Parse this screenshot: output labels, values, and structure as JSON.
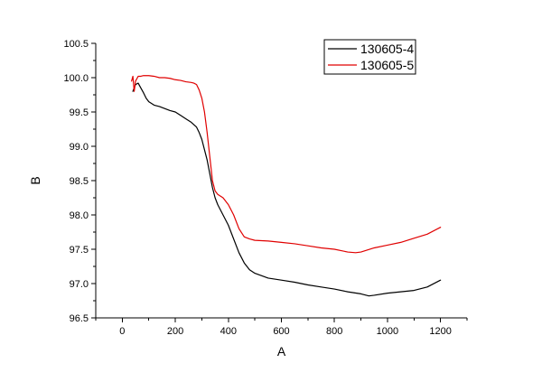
{
  "chart_data": {
    "type": "line",
    "title": "",
    "xlabel": "A",
    "ylabel": "B",
    "xlim": [
      -100,
      1300
    ],
    "ylim": [
      96.5,
      100.5
    ],
    "x_ticks": [
      0,
      200,
      400,
      600,
      800,
      1000,
      1200
    ],
    "x_tick_labels": [
      "0",
      "200",
      "400",
      "600",
      "800",
      "1000",
      "1200"
    ],
    "y_ticks": [
      96.5,
      97.0,
      97.5,
      98.0,
      98.5,
      99.0,
      99.5,
      100.0,
      100.5
    ],
    "y_tick_labels": [
      "96.5",
      "97.0",
      "97.5",
      "98.0",
      "98.5",
      "99.0",
      "99.5",
      "100.0",
      "100.5"
    ],
    "grid": false,
    "legend_position": "top-right",
    "series": [
      {
        "name": "130605-4",
        "color": "#000000",
        "x": [
          40,
          50,
          60,
          70,
          80,
          90,
          100,
          120,
          140,
          160,
          180,
          200,
          220,
          240,
          260,
          280,
          290,
          300,
          310,
          320,
          330,
          340,
          350,
          360,
          380,
          400,
          420,
          440,
          460,
          480,
          500,
          550,
          600,
          650,
          700,
          750,
          800,
          850,
          900,
          930,
          950,
          1000,
          1050,
          1100,
          1150,
          1200
        ],
        "y": [
          99.8,
          99.9,
          99.92,
          99.85,
          99.78,
          99.7,
          99.65,
          99.6,
          99.58,
          99.55,
          99.52,
          99.5,
          99.45,
          99.4,
          99.35,
          99.28,
          99.2,
          99.1,
          98.95,
          98.8,
          98.6,
          98.4,
          98.25,
          98.15,
          98.0,
          97.85,
          97.65,
          97.45,
          97.3,
          97.2,
          97.15,
          97.08,
          97.05,
          97.02,
          96.98,
          96.95,
          96.92,
          96.88,
          96.85,
          96.82,
          96.83,
          96.86,
          96.88,
          96.9,
          96.95,
          97.05
        ]
      },
      {
        "name": "130605-5",
        "color": "#e00000",
        "x": [
          35,
          40,
          45,
          50,
          60,
          70,
          80,
          100,
          120,
          140,
          160,
          180,
          200,
          220,
          240,
          260,
          270,
          280,
          290,
          300,
          310,
          320,
          330,
          340,
          350,
          360,
          380,
          400,
          420,
          440,
          460,
          480,
          500,
          550,
          600,
          650,
          700,
          750,
          800,
          850,
          880,
          900,
          950,
          1000,
          1050,
          1100,
          1150,
          1200
        ],
        "y": [
          99.95,
          100.02,
          99.8,
          99.95,
          100.02,
          100.02,
          100.03,
          100.03,
          100.02,
          100.0,
          100.0,
          99.99,
          99.97,
          99.96,
          99.94,
          99.93,
          99.92,
          99.9,
          99.82,
          99.7,
          99.5,
          99.2,
          98.85,
          98.5,
          98.35,
          98.3,
          98.25,
          98.15,
          98.0,
          97.8,
          97.68,
          97.65,
          97.63,
          97.62,
          97.6,
          97.58,
          97.55,
          97.52,
          97.5,
          97.46,
          97.45,
          97.46,
          97.52,
          97.56,
          97.6,
          97.66,
          97.72,
          97.82
        ]
      }
    ]
  }
}
